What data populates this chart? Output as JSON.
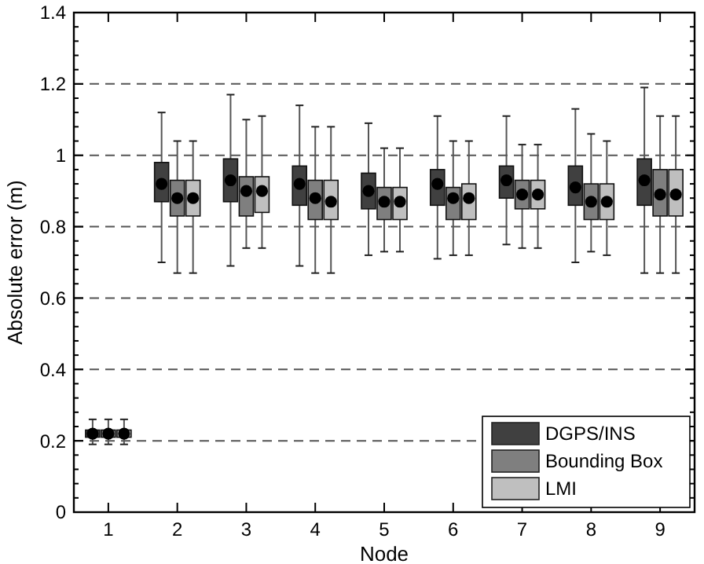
{
  "chart_data": {
    "type": "box",
    "xlabel": "Node",
    "ylabel": "Absolute error (m)",
    "categories": [
      "1",
      "2",
      "3",
      "4",
      "5",
      "6",
      "7",
      "8",
      "9"
    ],
    "ylim": [
      0,
      1.4
    ],
    "yticks": [
      0,
      0.2,
      0.4,
      0.6,
      0.8,
      1,
      1.2,
      1.4
    ],
    "grid": "y",
    "legend": "bottom right",
    "series": [
      {
        "name": "DGPS/INS",
        "color": "#404040",
        "boxes": [
          {
            "low": 0.19,
            "q1": 0.21,
            "median": 0.22,
            "q3": 0.23,
            "high": 0.26
          },
          {
            "low": 0.7,
            "q1": 0.87,
            "median": 0.92,
            "q3": 0.98,
            "high": 1.12
          },
          {
            "low": 0.69,
            "q1": 0.87,
            "median": 0.93,
            "q3": 0.99,
            "high": 1.17
          },
          {
            "low": 0.69,
            "q1": 0.86,
            "median": 0.92,
            "q3": 0.97,
            "high": 1.14
          },
          {
            "low": 0.72,
            "q1": 0.85,
            "median": 0.9,
            "q3": 0.95,
            "high": 1.09
          },
          {
            "low": 0.71,
            "q1": 0.86,
            "median": 0.92,
            "q3": 0.96,
            "high": 1.11
          },
          {
            "low": 0.75,
            "q1": 0.88,
            "median": 0.93,
            "q3": 0.97,
            "high": 1.11
          },
          {
            "low": 0.7,
            "q1": 0.86,
            "median": 0.91,
            "q3": 0.97,
            "high": 1.13
          },
          {
            "low": 0.67,
            "q1": 0.86,
            "median": 0.93,
            "q3": 0.99,
            "high": 1.19
          }
        ]
      },
      {
        "name": "Bounding Box",
        "color": "#7f7f7f",
        "boxes": [
          {
            "low": 0.19,
            "q1": 0.21,
            "median": 0.22,
            "q3": 0.23,
            "high": 0.26
          },
          {
            "low": 0.67,
            "q1": 0.83,
            "median": 0.88,
            "q3": 0.93,
            "high": 1.04
          },
          {
            "low": 0.74,
            "q1": 0.83,
            "median": 0.9,
            "q3": 0.94,
            "high": 1.1
          },
          {
            "low": 0.67,
            "q1": 0.82,
            "median": 0.88,
            "q3": 0.93,
            "high": 1.08
          },
          {
            "low": 0.73,
            "q1": 0.82,
            "median": 0.87,
            "q3": 0.91,
            "high": 1.02
          },
          {
            "low": 0.72,
            "q1": 0.82,
            "median": 0.88,
            "q3": 0.91,
            "high": 1.04
          },
          {
            "low": 0.74,
            "q1": 0.85,
            "median": 0.89,
            "q3": 0.93,
            "high": 1.03
          },
          {
            "low": 0.73,
            "q1": 0.82,
            "median": 0.87,
            "q3": 0.92,
            "high": 1.06
          },
          {
            "low": 0.67,
            "q1": 0.83,
            "median": 0.89,
            "q3": 0.96,
            "high": 1.11
          }
        ]
      },
      {
        "name": "LMI",
        "color": "#bfbfbf",
        "boxes": [
          {
            "low": 0.19,
            "q1": 0.21,
            "median": 0.22,
            "q3": 0.23,
            "high": 0.26
          },
          {
            "low": 0.67,
            "q1": 0.83,
            "median": 0.88,
            "q3": 0.93,
            "high": 1.04
          },
          {
            "low": 0.74,
            "q1": 0.84,
            "median": 0.9,
            "q3": 0.94,
            "high": 1.11
          },
          {
            "low": 0.67,
            "q1": 0.82,
            "median": 0.87,
            "q3": 0.93,
            "high": 1.08
          },
          {
            "low": 0.73,
            "q1": 0.82,
            "median": 0.87,
            "q3": 0.91,
            "high": 1.02
          },
          {
            "low": 0.72,
            "q1": 0.82,
            "median": 0.88,
            "q3": 0.92,
            "high": 1.04
          },
          {
            "low": 0.74,
            "q1": 0.85,
            "median": 0.89,
            "q3": 0.93,
            "high": 1.03
          },
          {
            "low": 0.72,
            "q1": 0.82,
            "median": 0.87,
            "q3": 0.92,
            "high": 1.04
          },
          {
            "low": 0.67,
            "q1": 0.83,
            "median": 0.89,
            "q3": 0.96,
            "high": 1.11
          }
        ]
      }
    ]
  }
}
